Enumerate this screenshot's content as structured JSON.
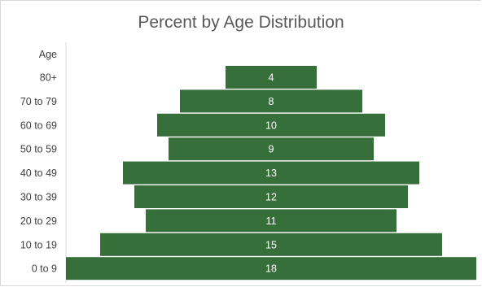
{
  "chart_data": {
    "type": "bar",
    "orientation": "horizontal-centered",
    "title": "Percent by Age Distribution",
    "axis_title": "Age",
    "categories": [
      "80+",
      "70 to 79",
      "60 to 69",
      "50 to 59",
      "40 to 49",
      "30 to 39",
      "20 to 29",
      "10 to 19",
      "0 to 9"
    ],
    "values": [
      4,
      8,
      10,
      9,
      13,
      12,
      11,
      15,
      18
    ],
    "xlim": [
      0,
      18
    ],
    "grid": false,
    "legend": "none",
    "bar_color": "#376f3b",
    "label_color": "#ffffff"
  }
}
